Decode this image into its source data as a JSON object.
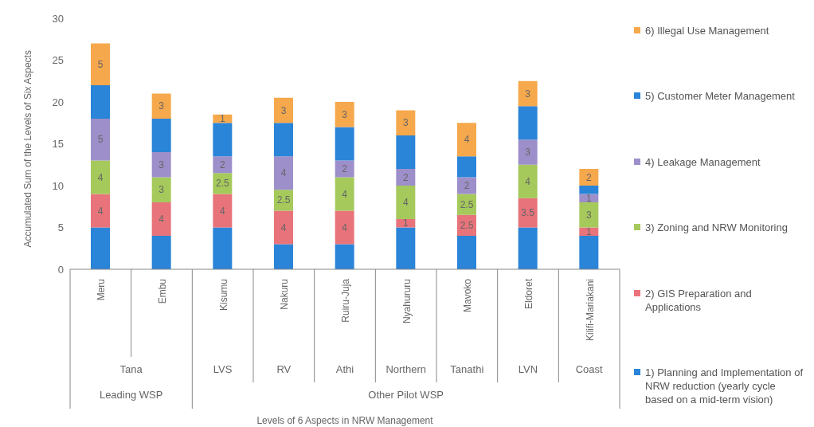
{
  "chart_data": {
    "type": "bar",
    "stacked": true,
    "categories": [
      "Meru",
      "Embu",
      "Kisumu",
      "Nakuru",
      "Ruiru-Juja",
      "Nyahururu",
      "Mavoko",
      "Eldoret",
      "Kilifi-Mariakani"
    ],
    "series": [
      {
        "name": "1) Planning and Implementation of NRW reduction (yearly cycle based on a mid-term vision)",
        "color": "#2a84d8",
        "values": [
          5,
          4,
          5,
          3,
          3,
          5,
          4,
          5,
          4
        ]
      },
      {
        "name": "2) GIS Preparation and Applications",
        "color": "#e8737b",
        "values": [
          4,
          4,
          4,
          4,
          4,
          1,
          2.5,
          3.5,
          1
        ],
        "value_labels": [
          "4",
          "4",
          "4",
          "4",
          "4",
          "1",
          "2.5",
          "3.5",
          "1"
        ]
      },
      {
        "name": "3) Zoning and NRW Monitoring",
        "color": "#a5c95b",
        "values": [
          4,
          3,
          2.5,
          2.5,
          4,
          4,
          2.5,
          4,
          3
        ],
        "value_labels": [
          "4",
          "3",
          "2.5",
          "2.5",
          "4",
          "4",
          "2.5",
          "4",
          "3"
        ]
      },
      {
        "name": "4) Leakage Management",
        "color": "#9d8fca",
        "values": [
          5,
          3,
          2,
          4,
          2,
          2,
          2,
          3,
          1
        ],
        "value_labels": [
          "5",
          "3",
          "2",
          "4",
          "2",
          "2",
          "2",
          "3",
          "1"
        ]
      },
      {
        "name": "5) Customer Meter Management",
        "color": "#2a84d8",
        "values": [
          4,
          4,
          4,
          4,
          4,
          4,
          2.5,
          4,
          1
        ]
      },
      {
        "name": "6) Illegal Use Management",
        "color": "#f6a84c",
        "values": [
          5,
          3,
          1,
          3,
          3,
          3,
          4,
          3,
          2
        ],
        "value_labels": [
          "5",
          "3",
          "1",
          "3",
          "3",
          "3",
          "4",
          "3",
          "2"
        ]
      }
    ],
    "ylim": [
      0,
      30
    ],
    "yticks": [
      0,
      5,
      10,
      15,
      20,
      25,
      30
    ],
    "grid": false,
    "legend": "right",
    "ylabel": "Accumulated Sum of the Levels of Six Aspects",
    "annotations": [
      "Tana",
      "LVS",
      "RV",
      "Athi",
      "Northern",
      "Tanathi",
      "LVN",
      "Coast",
      "Leading WSP",
      "Other Pilot WSP",
      "Levels of 6  Aspects  in  NRW Management"
    ]
  }
}
